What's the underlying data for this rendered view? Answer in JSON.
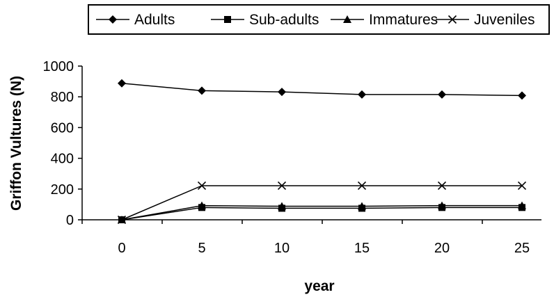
{
  "chart_data": {
    "type": "line",
    "title": "",
    "xlabel": "year",
    "ylabel": "Griffon Vultures (N)",
    "x": [
      0,
      5,
      10,
      15,
      20,
      25
    ],
    "x_tick_labels": [
      "0",
      "5",
      "10",
      "15",
      "20",
      "25"
    ],
    "ylim": [
      0,
      1000
    ],
    "y_ticks": [
      0,
      200,
      400,
      600,
      800,
      1000
    ],
    "y_tick_labels": [
      "0",
      "200",
      "400",
      "600",
      "800",
      "1000"
    ],
    "grid": false,
    "legend_position": "top",
    "series": [
      {
        "name": "Adults",
        "marker": "diamond",
        "values": [
          888,
          840,
          832,
          815,
          815,
          808
        ]
      },
      {
        "name": "Sub-adults",
        "marker": "square",
        "values": [
          0,
          80,
          75,
          75,
          80,
          80
        ]
      },
      {
        "name": "Immatures",
        "marker": "triangle",
        "values": [
          0,
          92,
          88,
          88,
          92,
          92
        ]
      },
      {
        "name": "Juveniles",
        "marker": "x",
        "values": [
          0,
          222,
          222,
          222,
          222,
          222
        ]
      }
    ],
    "colors": {
      "line": "#000000",
      "background": "#ffffff"
    }
  }
}
